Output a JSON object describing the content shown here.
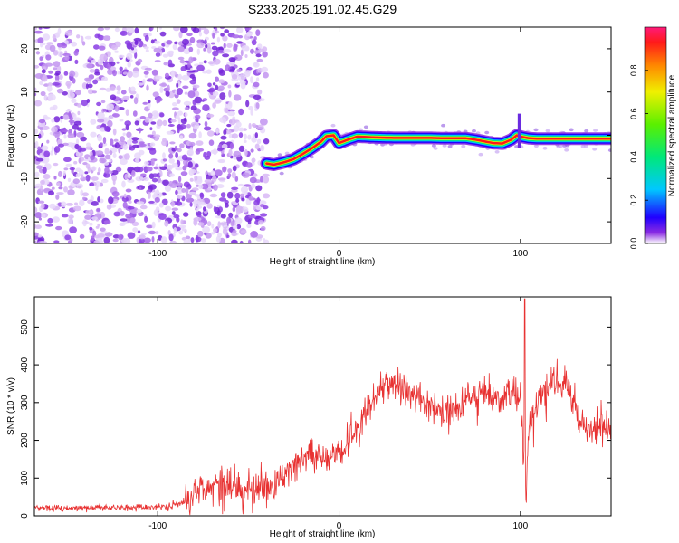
{
  "title": "S233.2025.191.02.45.G29",
  "chart_data": [
    {
      "type": "heatmap",
      "xlabel": "Height of straight line (km)",
      "ylabel": "Frequency (Hz)",
      "xlim": [
        -168,
        150
      ],
      "ylim": [
        -25,
        25
      ],
      "xticks": [
        -100,
        0,
        100
      ],
      "yticks": [
        -20,
        -10,
        0,
        10,
        20
      ],
      "noise_region_x": [
        -168,
        -40
      ],
      "signal_ridge": {
        "x": [
          -40,
          -36,
          -30,
          -25,
          -20,
          -15,
          -10,
          -7,
          -3,
          0,
          5,
          10,
          20,
          30,
          40,
          50,
          60,
          70,
          75,
          80,
          85,
          90,
          95,
          98,
          100,
          105,
          110,
          120,
          130,
          140,
          150
        ],
        "y": [
          -6.5,
          -6.8,
          -6.2,
          -5.5,
          -4.3,
          -3.0,
          -1.5,
          -0.2,
          0.0,
          -1.8,
          -1.0,
          -0.3,
          -0.5,
          -0.6,
          -0.6,
          -0.6,
          -0.7,
          -0.7,
          -1.0,
          -1.4,
          -1.8,
          -1.9,
          -1.0,
          0.0,
          -0.3,
          -0.7,
          -0.8,
          -0.8,
          -0.8,
          -0.8,
          -0.8
        ]
      },
      "colorbar": {
        "label": "Normalized spectral amplitude",
        "range": [
          0,
          1
        ],
        "ticks": [
          0.0,
          0.2,
          0.4,
          0.6,
          0.8
        ]
      }
    },
    {
      "type": "line",
      "xlabel": "Height of straight line (km)",
      "ylabel": "SNR (10 * v/v)",
      "xlim": [
        -168,
        150
      ],
      "ylim": [
        0,
        580
      ],
      "xticks": [
        -100,
        0,
        100
      ],
      "yticks": [
        0,
        100,
        200,
        300,
        400,
        500
      ],
      "series": [
        {
          "color": "#e83232",
          "x": [
            -168,
            -150,
            -130,
            -110,
            -95,
            -85,
            -80,
            -75,
            -70,
            -65,
            -60,
            -55,
            -50,
            -45,
            -40,
            -35,
            -30,
            -25,
            -20,
            -15,
            -10,
            -5,
            0,
            5,
            10,
            15,
            18,
            20,
            25,
            30,
            35,
            40,
            45,
            50,
            55,
            60,
            65,
            70,
            75,
            80,
            85,
            90,
            95,
            100,
            102,
            103,
            105,
            110,
            115,
            120,
            125,
            130,
            135,
            140,
            145,
            150
          ],
          "y": [
            22,
            20,
            22,
            22,
            25,
            35,
            65,
            80,
            75,
            90,
            85,
            80,
            70,
            65,
            65,
            80,
            110,
            130,
            150,
            165,
            160,
            155,
            170,
            200,
            230,
            270,
            300,
            320,
            345,
            350,
            340,
            310,
            320,
            290,
            270,
            280,
            290,
            310,
            320,
            330,
            310,
            300,
            330,
            310,
            150,
            60,
            240,
            300,
            340,
            360,
            350,
            280,
            240,
            220,
            240,
            225
          ]
        }
      ]
    }
  ]
}
